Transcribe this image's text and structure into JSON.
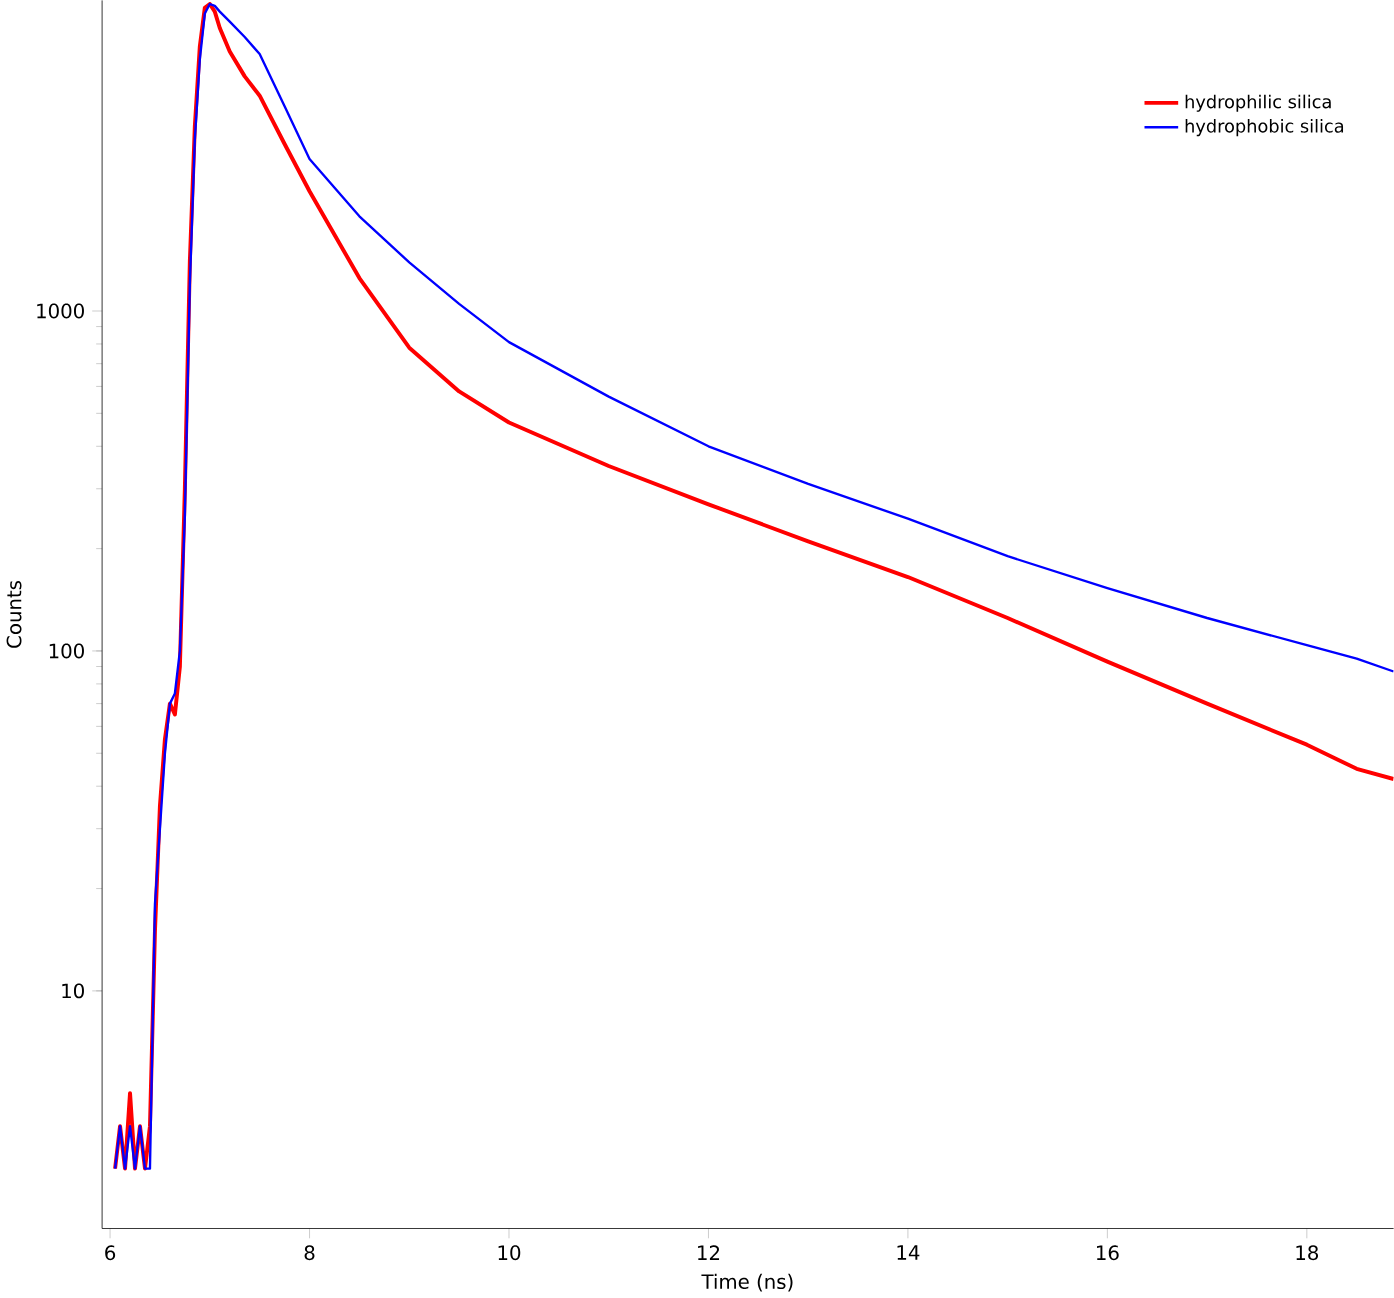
{
  "chart_data": {
    "type": "line",
    "xlabel": "Time (ns)",
    "ylabel": "Counts",
    "log": "y",
    "legend": "top right",
    "xlim": [
      5.92,
      18.87
    ],
    "ylim": [
      2,
      8200
    ],
    "xticks": [
      6,
      8,
      10,
      12,
      14,
      16,
      18
    ],
    "yticks": [
      10,
      100,
      1000
    ],
    "x": [
      6.05,
      6.1,
      6.15,
      6.2,
      6.25,
      6.3,
      6.35,
      6.4,
      6.45,
      6.5,
      6.55,
      6.6,
      6.65,
      6.7,
      6.75,
      6.8,
      6.85,
      6.9,
      6.95,
      7.0,
      7.05,
      7.1,
      7.2,
      7.35,
      7.5,
      7.75,
      8,
      8.5,
      9,
      9.5,
      10,
      11,
      12,
      13,
      14,
      15,
      16,
      17,
      18,
      18.5,
      18.87
    ],
    "series": [
      {
        "name": "hydrophilic silica",
        "color": "#ff0000",
        "values": [
          3,
          4,
          3,
          5,
          3,
          4,
          3,
          4,
          15,
          35,
          55,
          70,
          65,
          90,
          300,
          1400,
          3500,
          6000,
          7800,
          8000,
          7600,
          6800,
          5800,
          4900,
          4300,
          3100,
          2250,
          1250,
          780,
          580,
          470,
          350,
          270,
          210,
          165,
          125,
          93,
          70,
          53,
          45,
          42
        ]
      },
      {
        "name": "hydrophobic silica",
        "color": "#0000ff",
        "values": [
          3,
          4,
          3,
          4,
          3,
          4,
          3,
          3,
          18,
          30,
          50,
          70,
          75,
          100,
          250,
          1200,
          3200,
          5500,
          7500,
          8000,
          7900,
          7600,
          7100,
          6400,
          5700,
          4000,
          2800,
          1900,
          1390,
          1050,
          810,
          560,
          400,
          310,
          245,
          190,
          153,
          125,
          104,
          95,
          87
        ]
      }
    ]
  }
}
